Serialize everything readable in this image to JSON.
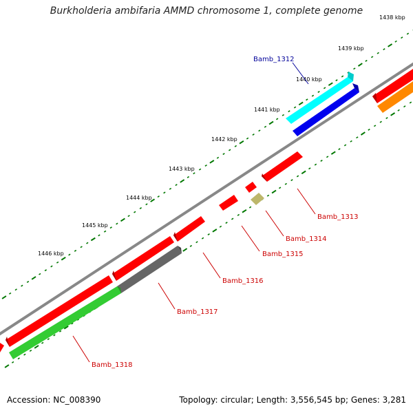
{
  "title": "Burkholderia ambifaria AMMD chromosome 1, complete genome",
  "footer": {
    "accession": "Accession: NC_008390",
    "stats": "Topology: circular; Length: 3,556,545 bp; Genes: 3,281"
  },
  "ruler": {
    "unit": "kbp",
    "ticks": [
      {
        "kbp": 1438,
        "label": "1438 kbp"
      },
      {
        "kbp": 1439,
        "label": "1439 kbp"
      },
      {
        "kbp": 1440,
        "label": "1440 kbp"
      },
      {
        "kbp": 1441,
        "label": "1441 kbp"
      },
      {
        "kbp": 1442,
        "label": "1442 kbp"
      },
      {
        "kbp": 1443,
        "label": "1443 kbp"
      },
      {
        "kbp": 1444,
        "label": "1444 kbp"
      },
      {
        "kbp": 1445,
        "label": "1445 kbp"
      },
      {
        "kbp": 1446,
        "label": "1446 kbp"
      }
    ]
  },
  "colors": {
    "forward_cds": "#ff0000",
    "reverse_cds": "#ff0000",
    "cyan_feature": "#00ffff",
    "blue_feature": "#0000ff",
    "orange_feature": "#ff8800",
    "green_feature": "#33cc33",
    "gray_feature": "#666666",
    "khaki_feature": "#bdb76b",
    "backbone": "#888888",
    "tick_green": "#007700",
    "label_red": "#cc0000",
    "label_blue": "#000099"
  },
  "genes": [
    {
      "name": "Bamb_1312",
      "label_color": "label_blue"
    },
    {
      "name": "Bamb_1313",
      "label_color": "label_red"
    },
    {
      "name": "Bamb_1314",
      "label_color": "label_red"
    },
    {
      "name": "Bamb_1315",
      "label_color": "label_red"
    },
    {
      "name": "Bamb_1316",
      "label_color": "label_red"
    },
    {
      "name": "Bamb_1317",
      "label_color": "label_red"
    },
    {
      "name": "Bamb_1318",
      "label_color": "label_red"
    }
  ]
}
